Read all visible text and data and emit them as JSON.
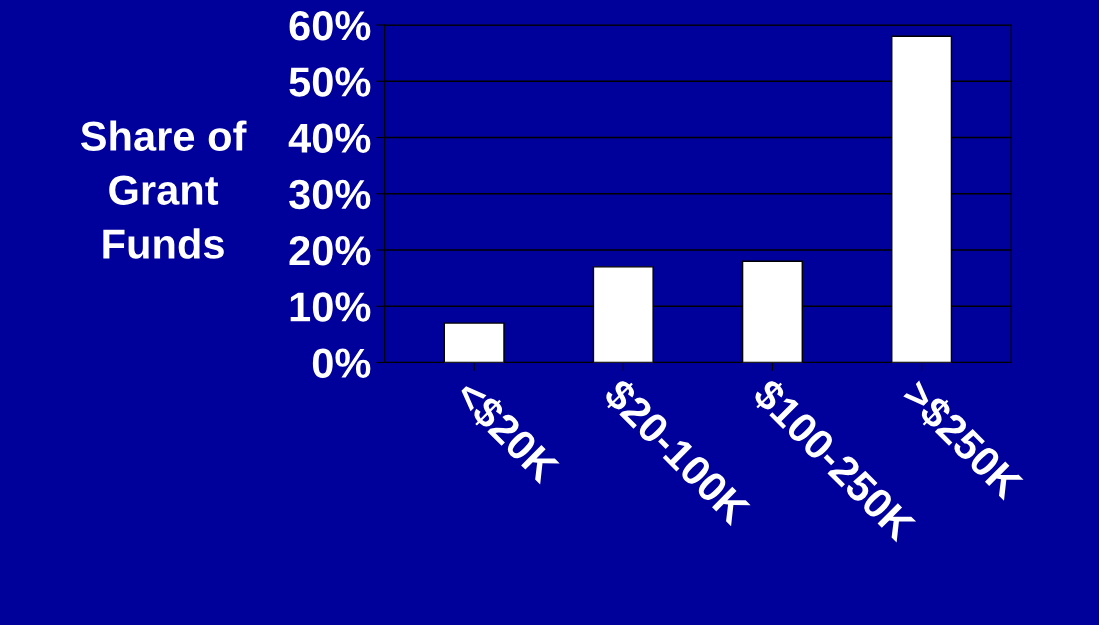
{
  "chart_data": {
    "type": "bar",
    "ylabel": "Share of\nGrant\nFunds",
    "categories": [
      "<$20K",
      "$20-100K",
      "$100-250K",
      ">$250K"
    ],
    "values": [
      7,
      17,
      18,
      58
    ],
    "color": "#ffffff",
    "ylim": [
      0,
      60
    ],
    "yticks": [
      {
        "value": 0,
        "label": "0%"
      },
      {
        "value": 10,
        "label": "10%"
      },
      {
        "value": 20,
        "label": "20%"
      },
      {
        "value": 30,
        "label": "30%"
      },
      {
        "value": 40,
        "label": "40%"
      },
      {
        "value": 50,
        "label": "50%"
      },
      {
        "value": 60,
        "label": "60%"
      }
    ],
    "grid": "y"
  }
}
